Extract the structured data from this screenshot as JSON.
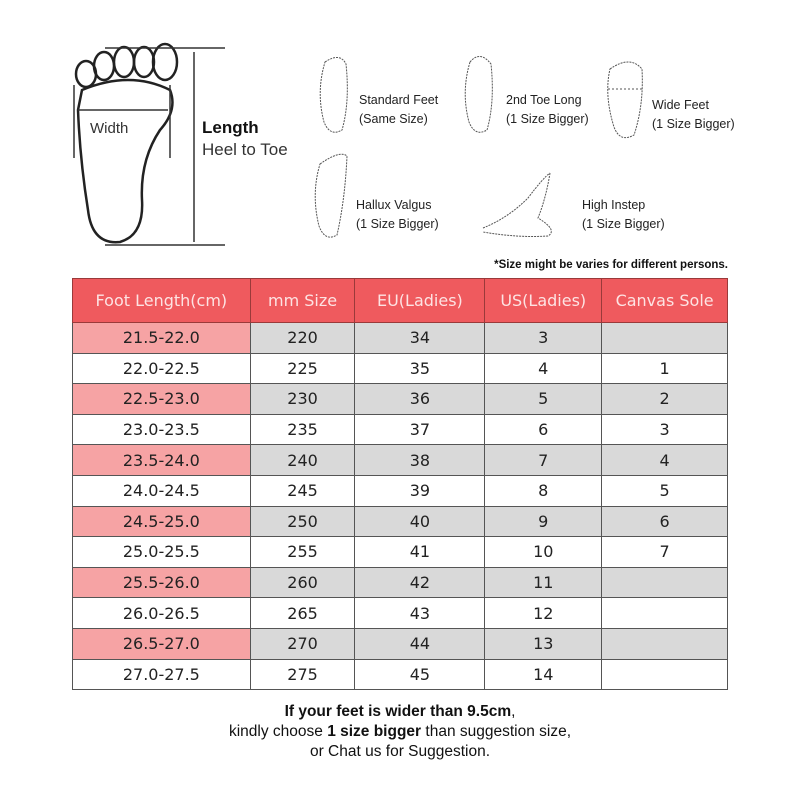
{
  "diagram": {
    "width_label": "Width",
    "length_label": "Length",
    "length_sub": "Heel to Toe",
    "foot_types": [
      {
        "name": "Standard Feet",
        "advice": "(Same Size)"
      },
      {
        "name": "2nd Toe Long",
        "advice": "(1 Size Bigger)"
      },
      {
        "name": "Wide Feet",
        "advice": "(1 Size Bigger)"
      },
      {
        "name": "Hallux Valgus",
        "advice": "(1 Size Bigger)"
      },
      {
        "name": "High Instep",
        "advice": "(1 Size Bigger)"
      }
    ]
  },
  "note": "*Size might be varies for different persons.",
  "table": {
    "headers": [
      "Foot Length(cm)",
      "mm Size",
      "EU(Ladies)",
      "US(Ladies)",
      "Canvas Sole"
    ],
    "rows": [
      [
        "21.5-22.0",
        "220",
        "34",
        "3",
        ""
      ],
      [
        "22.0-22.5",
        "225",
        "35",
        "4",
        "1"
      ],
      [
        "22.5-23.0",
        "230",
        "36",
        "5",
        "2"
      ],
      [
        "23.0-23.5",
        "235",
        "37",
        "6",
        "3"
      ],
      [
        "23.5-24.0",
        "240",
        "38",
        "7",
        "4"
      ],
      [
        "24.0-24.5",
        "245",
        "39",
        "8",
        "5"
      ],
      [
        "24.5-25.0",
        "250",
        "40",
        "9",
        "6"
      ],
      [
        "25.0-25.5",
        "255",
        "41",
        "10",
        "7"
      ],
      [
        "25.5-26.0",
        "260",
        "42",
        "11",
        ""
      ],
      [
        "26.0-26.5",
        "265",
        "43",
        "12",
        ""
      ],
      [
        "26.5-27.0",
        "270",
        "44",
        "13",
        ""
      ],
      [
        "27.0-27.5",
        "275",
        "45",
        "14",
        ""
      ]
    ]
  },
  "footer": {
    "line1": "If your feet is wider than 9.5cm",
    "line1_end": ",",
    "line2_pre": "kindly choose ",
    "line2_bold": "1 size bigger",
    "line2_post": " than suggestion size,",
    "line3": "or Chat us for Suggestion."
  },
  "colors": {
    "header": "#ef5a5e",
    "pink": "#f6a3a4",
    "gray": "#d9d9d9"
  }
}
